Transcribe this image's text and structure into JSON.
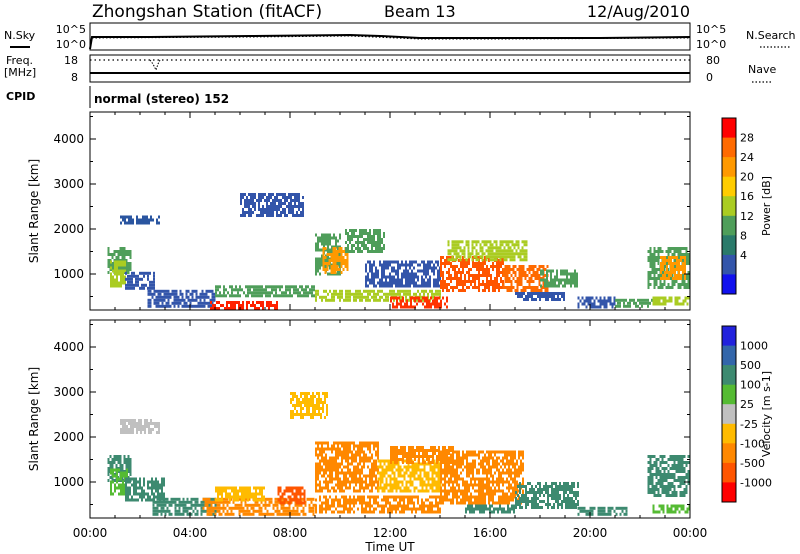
{
  "header": {
    "station": "Zhongshan Station (fitACF)",
    "beam": "Beam 13",
    "date": "12/Aug/2010"
  },
  "strip_labels": {
    "nsky": "N.Sky",
    "nsearch": "N.Search",
    "freq_line1": "Freq.",
    "freq_line2": "[MHz]",
    "nave": "Nave",
    "cpid": "CPID",
    "cpid_value": "normal (stereo) 152",
    "nsky_ticks": [
      "10^5",
      "10^0"
    ],
    "nsearch_ticks": [
      "10^5",
      "10^0"
    ],
    "freq_ticks": [
      "18",
      "8"
    ],
    "nave_ticks": [
      "80",
      "0"
    ]
  },
  "chart_data": [
    {
      "type": "heatmap",
      "name": "power",
      "ylabel": "Slant Range [km]",
      "colorbar_label": "Power [dB]",
      "colorbar_ticks": [
        "28",
        "24",
        "20",
        "16",
        "12",
        "8",
        "4"
      ],
      "colorbar_colors": [
        "#ff0000",
        "#ff6a00",
        "#ff9900",
        "#ffcc00",
        "#aacc22",
        "#4f9e5a",
        "#2a7a6a",
        "#3355aa",
        "#1111ee"
      ],
      "y_ticks": [
        1000,
        2000,
        3000,
        4000
      ],
      "ylim": [
        200,
        4600
      ],
      "regions": [
        {
          "t": [
            0.7,
            1.6
          ],
          "r": [
            1050,
            1600
          ],
          "c": "#4f9e5a"
        },
        {
          "t": [
            0.8,
            1.4
          ],
          "r": [
            700,
            1300
          ],
          "c": "#aacc22"
        },
        {
          "t": [
            1.4,
            2.6
          ],
          "r": [
            700,
            1050
          ],
          "c": "#3355aa"
        },
        {
          "t": [
            1.2,
            2.8
          ],
          "r": [
            2100,
            2300
          ],
          "c": "#2a55a0"
        },
        {
          "t": [
            2.3,
            5.0
          ],
          "r": [
            300,
            650
          ],
          "c": "#3355aa"
        },
        {
          "t": [
            4.8,
            7.5
          ],
          "r": [
            250,
            400
          ],
          "c": "#ff2200"
        },
        {
          "t": [
            5.0,
            9.0
          ],
          "r": [
            500,
            750
          ],
          "c": "#4f9e5a"
        },
        {
          "t": [
            6.0,
            8.5
          ],
          "r": [
            2300,
            2800
          ],
          "c": "#3355aa"
        },
        {
          "t": [
            9.0,
            10.0
          ],
          "r": [
            1000,
            1900
          ],
          "c": "#4f9e5a"
        },
        {
          "t": [
            9.3,
            10.3
          ],
          "r": [
            1000,
            1600
          ],
          "c": "#ff9900"
        },
        {
          "t": [
            9.0,
            14.0
          ],
          "r": [
            400,
            650
          ],
          "c": "#aacc22"
        },
        {
          "t": [
            10.2,
            11.8
          ],
          "r": [
            1500,
            2000
          ],
          "c": "#4f9e5a"
        },
        {
          "t": [
            11.0,
            14.0
          ],
          "r": [
            700,
            1300
          ],
          "c": "#3355aa"
        },
        {
          "t": [
            12.0,
            14.3
          ],
          "r": [
            250,
            500
          ],
          "c": "#ff3300"
        },
        {
          "t": [
            14.0,
            16.5
          ],
          "r": [
            600,
            1400
          ],
          "c": "#ff5500"
        },
        {
          "t": [
            14.3,
            17.5
          ],
          "r": [
            1300,
            1750
          ],
          "c": "#aacc22"
        },
        {
          "t": [
            16.5,
            18.3
          ],
          "r": [
            600,
            1200
          ],
          "c": "#ff6a00"
        },
        {
          "t": [
            17.0,
            19.0
          ],
          "r": [
            400,
            600
          ],
          "c": "#3355aa"
        },
        {
          "t": [
            18.0,
            19.5
          ],
          "r": [
            700,
            1100
          ],
          "c": "#4f9e5a"
        },
        {
          "t": [
            19.5,
            21.0
          ],
          "r": [
            250,
            500
          ],
          "c": "#3355aa"
        },
        {
          "t": [
            21.0,
            22.5
          ],
          "r": [
            300,
            450
          ],
          "c": "#4f9e5a"
        },
        {
          "t": [
            22.3,
            24.0
          ],
          "r": [
            700,
            1600
          ],
          "c": "#4f9e5a"
        },
        {
          "t": [
            22.8,
            23.8
          ],
          "r": [
            900,
            1400
          ],
          "c": "#ff9900"
        },
        {
          "t": [
            22.5,
            24.0
          ],
          "r": [
            350,
            500
          ],
          "c": "#aacc22"
        }
      ]
    },
    {
      "type": "heatmap",
      "name": "velocity",
      "ylabel": "Slant Range [km]",
      "colorbar_label": "Velocity [m s-1]",
      "colorbar_ticks": [
        "1000",
        "500",
        "100",
        "25",
        "-25",
        "-100",
        "-500",
        "-1000"
      ],
      "colorbar_colors": [
        "#2222dd",
        "#3366aa",
        "#3d8a70",
        "#55bb33",
        "#c0c0c0",
        "#ffbb00",
        "#ff8800",
        "#ff5500",
        "#ff0000"
      ],
      "y_ticks": [
        1000,
        2000,
        3000,
        4000
      ],
      "ylim": [
        200,
        4600
      ],
      "regions": [
        {
          "t": [
            0.7,
            1.6
          ],
          "r": [
            1050,
            1600
          ],
          "c": "#3d8a70"
        },
        {
          "t": [
            0.8,
            1.5
          ],
          "r": [
            700,
            1300
          ],
          "c": "#55bb33"
        },
        {
          "t": [
            1.4,
            3.0
          ],
          "r": [
            600,
            1100
          ],
          "c": "#3d8a70"
        },
        {
          "t": [
            1.2,
            2.8
          ],
          "r": [
            2100,
            2400
          ],
          "c": "#c0c0c0"
        },
        {
          "t": [
            2.5,
            5.0
          ],
          "r": [
            300,
            650
          ],
          "c": "#3d8a70"
        },
        {
          "t": [
            4.5,
            9.0
          ],
          "r": [
            250,
            650
          ],
          "c": "#ff8800"
        },
        {
          "t": [
            5.0,
            7.0
          ],
          "r": [
            600,
            900
          ],
          "c": "#ffbb00"
        },
        {
          "t": [
            7.5,
            8.6
          ],
          "r": [
            500,
            900
          ],
          "c": "#ff5500"
        },
        {
          "t": [
            8.0,
            9.5
          ],
          "r": [
            2400,
            3000
          ],
          "c": "#ffbb00"
        },
        {
          "t": [
            9.0,
            11.5
          ],
          "r": [
            800,
            1900
          ],
          "c": "#ff8800"
        },
        {
          "t": [
            9.0,
            14.0
          ],
          "r": [
            350,
            700
          ],
          "c": "#ff8800"
        },
        {
          "t": [
            11.5,
            14.0
          ],
          "r": [
            800,
            1500
          ],
          "c": "#ffbb00"
        },
        {
          "t": [
            12.0,
            14.5
          ],
          "r": [
            1400,
            1800
          ],
          "c": "#ff8800"
        },
        {
          "t": [
            14.0,
            17.3
          ],
          "r": [
            500,
            1700
          ],
          "c": "#ff8800"
        },
        {
          "t": [
            15.0,
            17.0
          ],
          "r": [
            300,
            500
          ],
          "c": "#3d8a70"
        },
        {
          "t": [
            17.0,
            19.5
          ],
          "r": [
            400,
            1000
          ],
          "c": "#3d8a70"
        },
        {
          "t": [
            19.5,
            21.5
          ],
          "r": [
            250,
            450
          ],
          "c": "#3d8a70"
        },
        {
          "t": [
            22.3,
            24.0
          ],
          "r": [
            700,
            1600
          ],
          "c": "#3d8a70"
        },
        {
          "t": [
            22.5,
            24.0
          ],
          "r": [
            300,
            500
          ],
          "c": "#55bb33"
        }
      ]
    }
  ],
  "time_axis": {
    "ticks": [
      "00:00",
      "04:00",
      "08:00",
      "12:00",
      "16:00",
      "20:00",
      "00:00"
    ],
    "xlabel": "Time UT"
  }
}
